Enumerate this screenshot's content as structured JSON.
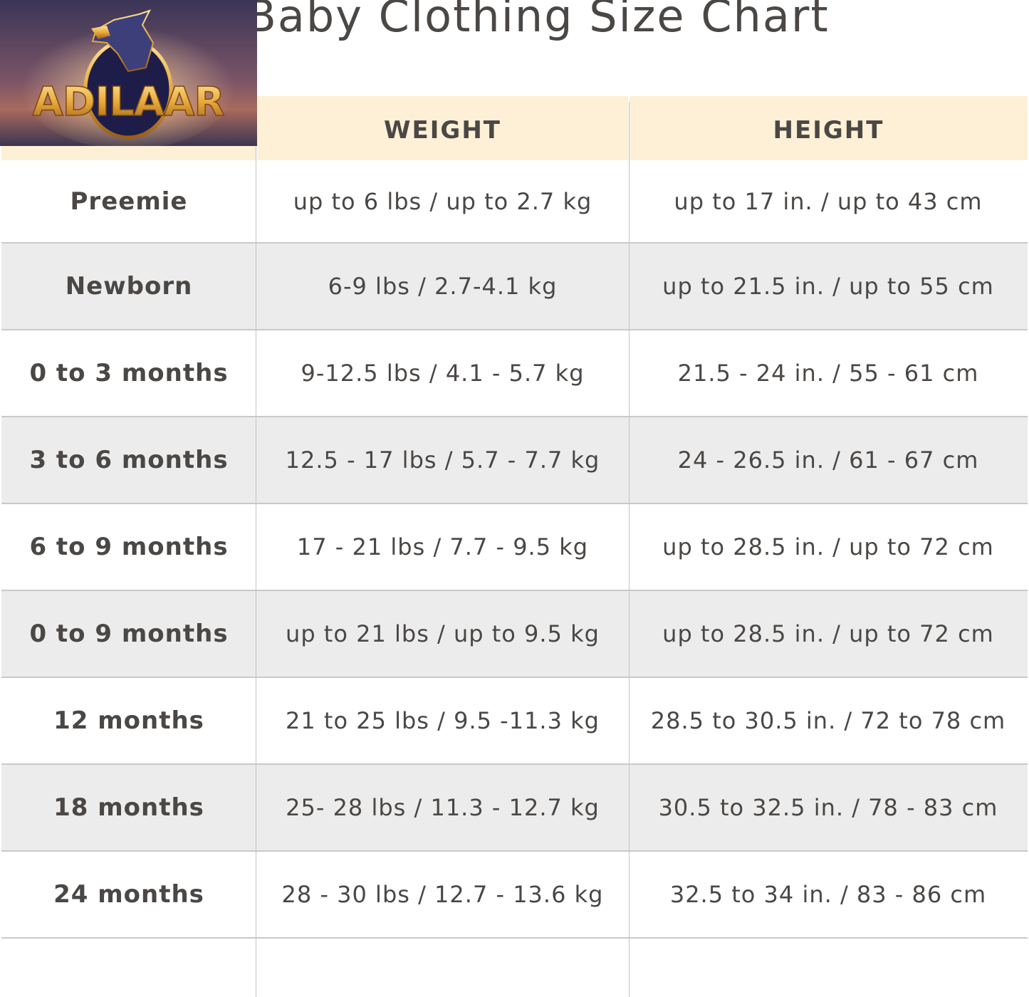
{
  "title": "Baby Clothing Size Chart",
  "logo": {
    "text": "ADILAAR",
    "icon": "eagle-emblem"
  },
  "columns": [
    "",
    "WEIGHT",
    "HEIGHT"
  ],
  "rows": [
    {
      "size": "Preemie",
      "weight": "up to 6 lbs / up to 2.7 kg",
      "height": "up to 17 in. / up to 43 cm"
    },
    {
      "size": "Newborn",
      "weight": "6-9 lbs / 2.7-4.1 kg",
      "height": "up to 21.5 in. / up to 55 cm"
    },
    {
      "size": "0 to 3 months",
      "weight": "9-12.5 lbs / 4.1 - 5.7 kg",
      "height": "21.5 - 24 in. / 55 - 61 cm"
    },
    {
      "size": "3 to 6 months",
      "weight": "12.5 - 17 lbs / 5.7 - 7.7 kg",
      "height": "24 - 26.5 in. / 61 - 67 cm"
    },
    {
      "size": "6 to 9 months",
      "weight": "17 - 21 lbs / 7.7 - 9.5 kg",
      "height": "up to 28.5 in. / up to 72 cm"
    },
    {
      "size": "0 to 9 months",
      "weight": "up to 21 lbs / up to 9.5 kg",
      "height": "up to 28.5 in. / up to 72 cm"
    },
    {
      "size": "12 months",
      "weight": "21 to 25 lbs / 9.5 -11.3 kg",
      "height": "28.5 to 30.5 in. / 72 to 78 cm"
    },
    {
      "size": "18 months",
      "weight": "25- 28 lbs / 11.3 - 12.7 kg",
      "height": "30.5 to 32.5 in. / 78 - 83 cm"
    },
    {
      "size": "24 months",
      "weight": "28 - 30 lbs / 12.7 - 13.6 kg",
      "height": "32.5 to 34 in. / 83 - 86 cm"
    }
  ],
  "colors": {
    "header_bg": "#fdf0d6",
    "stripe_bg": "#ececec",
    "text": "#4a4745",
    "logo_gold": "#e8a93a"
  }
}
